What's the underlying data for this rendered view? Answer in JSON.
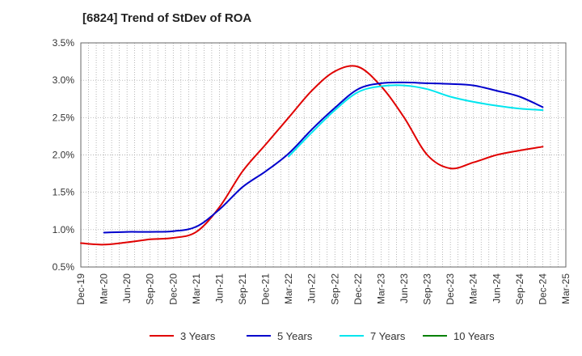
{
  "chart_data": {
    "type": "line",
    "title": "[6824]  Trend of StDev of ROA",
    "xlabel": "",
    "ylabel": "",
    "y_tick_labels": [
      "0.5%",
      "1.0%",
      "1.5%",
      "2.0%",
      "2.5%",
      "3.0%",
      "3.5%"
    ],
    "x_tick_labels": [
      "Dec-19",
      "Mar-20",
      "Jun-20",
      "Sep-20",
      "Dec-20",
      "Mar-21",
      "Jun-21",
      "Sep-21",
      "Dec-21",
      "Mar-22",
      "Jun-22",
      "Sep-22",
      "Dec-22",
      "Mar-23",
      "Jun-23",
      "Sep-23",
      "Dec-23",
      "Mar-24",
      "Jun-24",
      "Sep-24",
      "Dec-24",
      "Mar-25"
    ],
    "ylim": [
      0.5,
      3.5
    ],
    "grid": true,
    "legend_position": "bottom",
    "series": [
      {
        "name": "3 Years",
        "color": "#e00000",
        "values": [
          0.82,
          0.8,
          0.83,
          0.87,
          0.89,
          0.97,
          1.3,
          1.78,
          2.14,
          2.5,
          2.86,
          3.12,
          3.18,
          2.92,
          2.5,
          2.0,
          1.82,
          1.9,
          2.0,
          2.06,
          2.11
        ]
      },
      {
        "name": "5 Years",
        "color": "#0000cc",
        "values": [
          null,
          0.96,
          0.97,
          0.97,
          0.98,
          1.04,
          1.27,
          1.57,
          1.78,
          2.02,
          2.34,
          2.63,
          2.88,
          2.96,
          2.97,
          2.96,
          2.95,
          2.93,
          2.86,
          2.78,
          2.64
        ]
      },
      {
        "name": "7 Years",
        "color": "#00e5ee",
        "values": [
          null,
          null,
          null,
          null,
          null,
          null,
          null,
          null,
          null,
          1.98,
          2.3,
          2.6,
          2.84,
          2.92,
          2.93,
          2.88,
          2.78,
          2.71,
          2.66,
          2.62,
          2.6
        ]
      },
      {
        "name": "10 Years",
        "color": "#008000",
        "values": []
      }
    ]
  }
}
